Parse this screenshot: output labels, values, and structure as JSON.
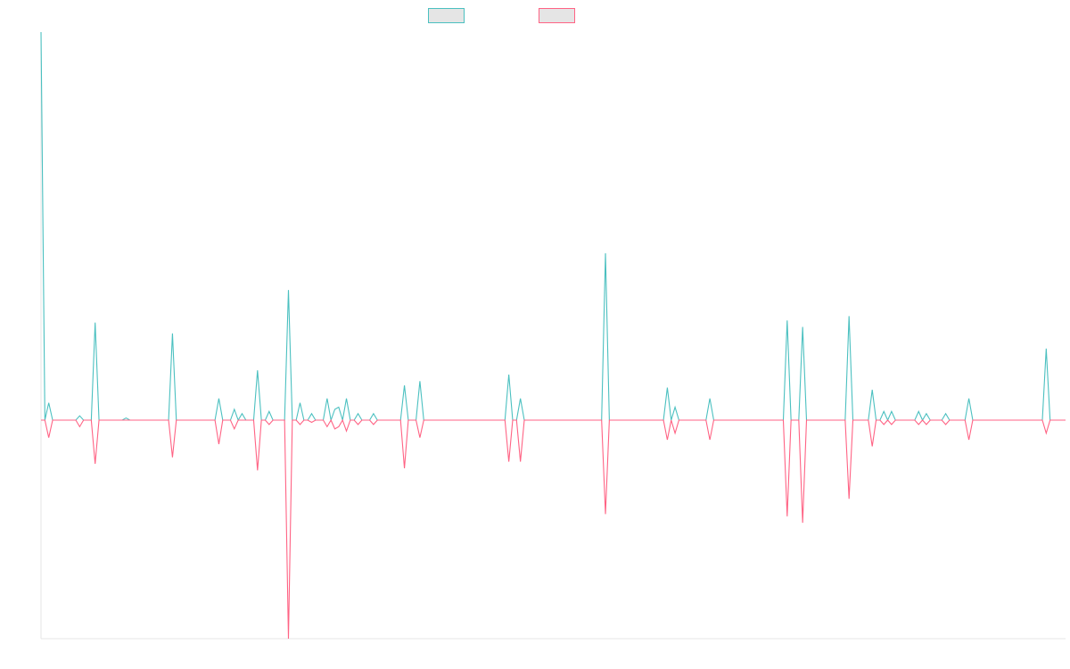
{
  "chart_data": {
    "type": "line",
    "title": "",
    "xlabel": "",
    "ylabel": "",
    "grid": false,
    "legend_position": "top-center",
    "ylim": [
      -1.0,
      1.79
    ],
    "series": [
      {
        "name": "",
        "color": "#4bc0c0",
        "fill": "#e5e5e5",
        "points": [
          [
            0,
            1.79
          ],
          [
            1,
            0.0
          ],
          [
            2,
            0.08
          ],
          [
            3,
            0.0
          ],
          [
            9,
            0.0
          ],
          [
            10,
            0.02
          ],
          [
            11,
            0.0
          ],
          [
            13,
            0.0
          ],
          [
            14,
            0.45
          ],
          [
            15,
            0.0
          ],
          [
            21,
            0.0
          ],
          [
            22,
            0.01
          ],
          [
            23,
            0.0
          ],
          [
            24,
            0.0
          ],
          [
            25,
            0.0
          ],
          [
            26,
            0.0
          ],
          [
            33,
            0.0
          ],
          [
            34,
            0.4
          ],
          [
            35,
            0.0
          ],
          [
            41,
            0.0
          ],
          [
            42,
            0.0
          ],
          [
            43,
            0.0
          ],
          [
            44,
            0.0
          ],
          [
            45,
            0.0
          ],
          [
            46,
            0.1
          ],
          [
            47,
            0.0
          ],
          [
            48,
            0.0
          ],
          [
            49,
            0.0
          ],
          [
            50,
            0.05
          ],
          [
            51,
            0.0
          ],
          [
            52,
            0.03
          ],
          [
            53,
            0.0
          ],
          [
            55,
            0.0
          ],
          [
            56,
            0.23
          ],
          [
            57,
            0.0
          ],
          [
            58,
            0.0
          ],
          [
            59,
            0.04
          ],
          [
            60,
            0.0
          ],
          [
            63,
            0.0
          ],
          [
            64,
            0.6
          ],
          [
            65,
            0.0
          ],
          [
            66,
            0.0
          ],
          [
            67,
            0.08
          ],
          [
            68,
            0.0
          ],
          [
            69,
            0.0
          ],
          [
            70,
            0.03
          ],
          [
            71,
            0.0
          ],
          [
            73,
            0.0
          ],
          [
            74,
            0.1
          ],
          [
            75,
            0.0
          ],
          [
            76,
            0.05
          ],
          [
            77,
            0.06
          ],
          [
            78,
            0.0
          ],
          [
            79,
            0.1
          ],
          [
            80,
            0.0
          ],
          [
            81,
            0.0
          ],
          [
            82,
            0.03
          ],
          [
            83,
            0.0
          ],
          [
            85,
            0.0
          ],
          [
            86,
            0.03
          ],
          [
            87,
            0.0
          ],
          [
            93,
            0.0
          ],
          [
            94,
            0.16
          ],
          [
            95,
            0.0
          ],
          [
            97,
            0.0
          ],
          [
            98,
            0.18
          ],
          [
            99,
            0.0
          ],
          [
            120,
            0.0
          ],
          [
            121,
            0.21
          ],
          [
            122,
            0.0
          ],
          [
            123,
            0.0
          ],
          [
            124,
            0.1
          ],
          [
            125,
            0.0
          ],
          [
            145,
            0.0
          ],
          [
            146,
            0.77
          ],
          [
            147,
            0.0
          ],
          [
            161,
            0.0
          ],
          [
            162,
            0.15
          ],
          [
            163,
            0.0
          ],
          [
            164,
            0.06
          ],
          [
            165,
            0.0
          ],
          [
            172,
            0.0
          ],
          [
            173,
            0.1
          ],
          [
            174,
            0.0
          ],
          [
            192,
            0.0
          ],
          [
            193,
            0.46
          ],
          [
            194,
            0.0
          ],
          [
            196,
            0.0
          ],
          [
            197,
            0.43
          ],
          [
            198,
            0.0
          ],
          [
            208,
            0.0
          ],
          [
            209,
            0.48
          ],
          [
            210,
            0.0
          ],
          [
            214,
            0.0
          ],
          [
            215,
            0.14
          ],
          [
            216,
            0.0
          ],
          [
            217,
            0.0
          ],
          [
            218,
            0.04
          ],
          [
            219,
            0.0
          ],
          [
            220,
            0.04
          ],
          [
            221,
            0.0
          ],
          [
            226,
            0.0
          ],
          [
            227,
            0.04
          ],
          [
            228,
            0.0
          ],
          [
            229,
            0.03
          ],
          [
            230,
            0.0
          ],
          [
            233,
            0.0
          ],
          [
            234,
            0.03
          ],
          [
            235,
            0.0
          ],
          [
            239,
            0.0
          ],
          [
            240,
            0.1
          ],
          [
            241,
            0.0
          ],
          [
            259,
            0.0
          ],
          [
            260,
            0.33
          ],
          [
            261,
            0.0
          ],
          [
            265,
            0.0
          ]
        ]
      },
      {
        "name": "",
        "color": "#ff6384",
        "fill": "#e5e5e5",
        "points": [
          [
            0,
            0.0
          ],
          [
            1,
            0.0
          ],
          [
            2,
            -0.08
          ],
          [
            3,
            0.0
          ],
          [
            9,
            0.0
          ],
          [
            10,
            -0.03
          ],
          [
            11,
            0.0
          ],
          [
            13,
            0.0
          ],
          [
            14,
            -0.2
          ],
          [
            15,
            0.0
          ],
          [
            21,
            0.0
          ],
          [
            22,
            0.0
          ],
          [
            23,
            0.0
          ],
          [
            24,
            0.0
          ],
          [
            25,
            0.0
          ],
          [
            26,
            0.0
          ],
          [
            33,
            0.0
          ],
          [
            34,
            -0.17
          ],
          [
            35,
            0.0
          ],
          [
            41,
            0.0
          ],
          [
            42,
            0.0
          ],
          [
            43,
            0.0
          ],
          [
            44,
            0.0
          ],
          [
            45,
            0.0
          ],
          [
            46,
            -0.11
          ],
          [
            47,
            0.0
          ],
          [
            48,
            0.0
          ],
          [
            49,
            0.0
          ],
          [
            50,
            -0.04
          ],
          [
            51,
            0.0
          ],
          [
            52,
            0.0
          ],
          [
            53,
            0.0
          ],
          [
            55,
            0.0
          ],
          [
            56,
            -0.23
          ],
          [
            57,
            0.0
          ],
          [
            58,
            0.0
          ],
          [
            59,
            -0.02
          ],
          [
            60,
            0.0
          ],
          [
            63,
            0.0
          ],
          [
            64,
            -1.0
          ],
          [
            65,
            0.0
          ],
          [
            66,
            0.0
          ],
          [
            67,
            -0.02
          ],
          [
            68,
            0.0
          ],
          [
            69,
            0.0
          ],
          [
            70,
            -0.01
          ],
          [
            71,
            0.0
          ],
          [
            73,
            0.0
          ],
          [
            74,
            -0.03
          ],
          [
            75,
            0.0
          ],
          [
            76,
            -0.04
          ],
          [
            77,
            -0.03
          ],
          [
            78,
            0.0
          ],
          [
            79,
            -0.05
          ],
          [
            80,
            0.0
          ],
          [
            81,
            0.0
          ],
          [
            82,
            -0.02
          ],
          [
            83,
            0.0
          ],
          [
            85,
            0.0
          ],
          [
            86,
            -0.02
          ],
          [
            87,
            0.0
          ],
          [
            93,
            0.0
          ],
          [
            94,
            -0.22
          ],
          [
            95,
            0.0
          ],
          [
            97,
            0.0
          ],
          [
            98,
            -0.08
          ],
          [
            99,
            0.0
          ],
          [
            120,
            0.0
          ],
          [
            121,
            -0.19
          ],
          [
            122,
            0.0
          ],
          [
            123,
            0.0
          ],
          [
            124,
            -0.19
          ],
          [
            125,
            0.0
          ],
          [
            145,
            0.0
          ],
          [
            146,
            -0.43
          ],
          [
            147,
            0.0
          ],
          [
            161,
            0.0
          ],
          [
            162,
            -0.09
          ],
          [
            163,
            0.0
          ],
          [
            164,
            -0.06
          ],
          [
            165,
            0.0
          ],
          [
            172,
            0.0
          ],
          [
            173,
            -0.09
          ],
          [
            174,
            0.0
          ],
          [
            192,
            0.0
          ],
          [
            193,
            -0.44
          ],
          [
            194,
            0.0
          ],
          [
            196,
            0.0
          ],
          [
            197,
            -0.47
          ],
          [
            198,
            0.0
          ],
          [
            208,
            0.0
          ],
          [
            209,
            -0.36
          ],
          [
            210,
            0.0
          ],
          [
            214,
            0.0
          ],
          [
            215,
            -0.12
          ],
          [
            216,
            0.0
          ],
          [
            217,
            0.0
          ],
          [
            218,
            -0.02
          ],
          [
            219,
            0.0
          ],
          [
            220,
            -0.02
          ],
          [
            221,
            0.0
          ],
          [
            226,
            0.0
          ],
          [
            227,
            -0.02
          ],
          [
            228,
            0.0
          ],
          [
            229,
            -0.02
          ],
          [
            230,
            0.0
          ],
          [
            233,
            0.0
          ],
          [
            234,
            -0.02
          ],
          [
            235,
            0.0
          ],
          [
            239,
            0.0
          ],
          [
            240,
            -0.09
          ],
          [
            241,
            0.0
          ],
          [
            259,
            0.0
          ],
          [
            260,
            -0.06
          ],
          [
            261,
            0.0
          ],
          [
            265,
            0.0
          ]
        ]
      }
    ]
  }
}
